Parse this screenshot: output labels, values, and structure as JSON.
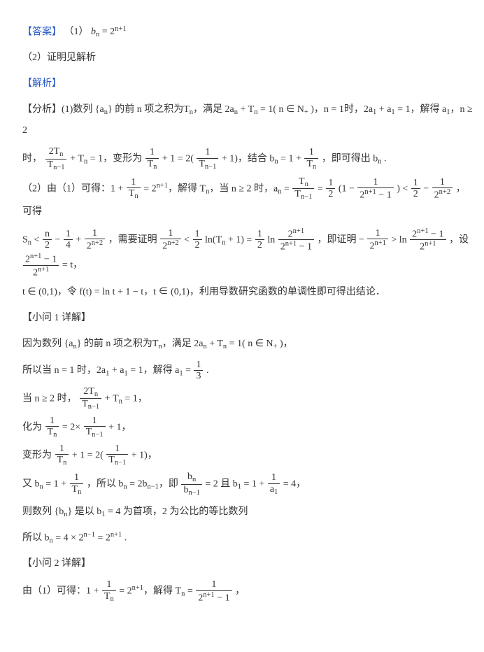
{
  "colors": {
    "blue": "#2356c5",
    "text": "#333333",
    "background": "#ffffff"
  },
  "typography": {
    "base_fontsize_pt": 11,
    "line_height": 2.2,
    "font_family": "SimSun"
  },
  "ans": {
    "label": "【答案】",
    "p1_pre": "（1）",
    "p1_lhs": "b",
    "p1_sub": "n",
    "p1_eq": " = 2",
    "p1_exp": "n+1",
    "p2": "（2）证明见解析"
  },
  "jiexi": {
    "label": "【解析】"
  },
  "fenxi": {
    "label": "【分析】",
    "l1a": "(1)数列 {a",
    "l1a_sub": "n",
    "l1b": "} 的前 n 项之积为T",
    "l1b_sub": "n",
    "l1c": "，满足 2a",
    "l1c_sub": "n",
    "l1d": " + T",
    "l1d_sub": "n",
    "l1e": " = 1( n ∈ N",
    "l1e_sub": "+",
    "l1f": " )，n = 1时，2a",
    "l1f_sub": "1",
    "l1g": " + a",
    "l1g_sub": "1",
    "l1h": " = 1，解得 a",
    "l1h_sub": "1",
    "l1i": "，n ≥ 2",
    "l2a": "时，",
    "l2_num": "2T",
    "l2_num_sub": "n",
    "l2_den": "T",
    "l2_den_sub": "n−1",
    "l2b": " + T",
    "l2b_sub": "n",
    "l2c": " = 1，变形为 ",
    "l2c_n1": "1",
    "l2c_d1": "T",
    "l2c_d1s": "n",
    "l2d": " + 1 = 2(",
    "l2d_n1": "1",
    "l2d_d1": "T",
    "l2d_d1s": "n−1",
    "l2e": " + 1)，结合 b",
    "l2e_sub": "n",
    "l2f": " = 1 + ",
    "l2f_n": "1",
    "l2f_d": "T",
    "l2f_ds": "n",
    "l2g": "，即可得出 b",
    "l2g_sub": "n",
    "l2h": " .",
    "l3a": "（2）由（1）可得：1 + ",
    "l3_n1": "1",
    "l3_d1": "T",
    "l3_d1s": "n",
    "l3b": " = 2",
    "l3b_exp": "n+1",
    "l3c": "，解得 T",
    "l3c_sub": "n",
    "l3d": "，当 n ≥ 2 时，a",
    "l3d_sub": "n",
    "l3e": " = ",
    "l3_nA": "T",
    "l3_nAs": "n",
    "l3_dA": "T",
    "l3_dAs": "n−1",
    "l3f": " = ",
    "l3_nB": "1",
    "l3_dB": "2",
    "l3g": "(1 − ",
    "l3_nC": "1",
    "l3_dC": "2",
    "l3_dCe": "n+1",
    "l3_dCm": " − 1",
    "l3h": ") < ",
    "l3_nD": "1",
    "l3_dD": "2",
    "l3i": " − ",
    "l3_nE": "1",
    "l3_dE": "2",
    "l3_dEe": "n+2",
    "l3j": "，可得",
    "l4a": "S",
    "l4a_sub": "n",
    "l4b": " < ",
    "l4_nA": "n",
    "l4_dA": "2",
    "l4c": " − ",
    "l4_nB": "1",
    "l4_dB": "4",
    "l4d": " + ",
    "l4_nC": "1",
    "l4_dC": "2",
    "l4_dCe": "n+2",
    "l4e": "，需要证明 ",
    "l4_nD": "1",
    "l4_dD": "2",
    "l4_dDe": "n+2",
    "l4f": " < ",
    "l4_nE": "1",
    "l4_dE": "2",
    "l4g": "ln(T",
    "l4g_sub": "n",
    "l4h": " + 1) = ",
    "l4_nF": "1",
    "l4_dF": "2",
    "l4i": " ln ",
    "l4_nG": "2",
    "l4_nGe": "n+1",
    "l4_dG": "2",
    "l4_dGe": "n+1",
    "l4_dGm": " − 1",
    "l4j": "，即证明 − ",
    "l4_nH": "1",
    "l4_dH": "2",
    "l4_dHe": "n+1",
    "l4k": " > ln ",
    "l4_nI": "2",
    "l4_nIe": "n+1",
    "l4_nIm": " − 1",
    "l4_dI": "2",
    "l4_dIe": "n+1",
    "l4l": "，设 ",
    "l4_nJ": "2",
    "l4_nJe": "n+1",
    "l4_nJm": " − 1",
    "l4_dJ": "2",
    "l4_dJe": "n+1",
    "l4m": " = t，",
    "l5": "t ∈ (0,1)，令 f(t) = ln t + 1 − t，t ∈ (0,1)，利用导数研究函数的单调性即可得出结论．"
  },
  "q1": {
    "label": "【小问 1 详解】",
    "p1a": "因为数列 {a",
    "p1as": "n",
    "p1b": "} 的前 n 项之积为T",
    "p1bs": "n",
    "p1c": "，满足 2a",
    "p1cs": "n",
    "p1d": " + T",
    "p1ds": "n",
    "p1e": " = 1( n ∈ N",
    "p1es": "+",
    "p1f": " )，",
    "p2a": "所以当 n = 1 时，2a",
    "p2as": "1",
    "p2b": " + a",
    "p2bs": "1",
    "p2c": " = 1，解得 a",
    "p2cs": "1",
    "p2d": " = ",
    "p2n": "1",
    "p2den": "3",
    "p2e": " .",
    "p3a": "当 n ≥ 2 时，",
    "p3n": "2T",
    "p3ns": "n",
    "p3d": "T",
    "p3ds": "n−1",
    "p3b": " + T",
    "p3bs": "n",
    "p3c": " = 1，",
    "p4a": "化为 ",
    "p4nA": "1",
    "p4dA": "T",
    "p4dAs": "n",
    "p4b": " = 2× ",
    "p4nB": "1",
    "p4dB": "T",
    "p4dBs": "n−1",
    "p4c": " + 1，",
    "p5a": "变形为 ",
    "p5nA": "1",
    "p5dA": "T",
    "p5dAs": "n",
    "p5b": " + 1 = 2(",
    "p5nB": "1",
    "p5dB": "T",
    "p5dBs": "n−1",
    "p5c": " + 1)，",
    "p6a": "又 b",
    "p6as": "n",
    "p6b": " = 1 + ",
    "p6nA": "1",
    "p6dA": "T",
    "p6dAs": "n",
    "p6c": "，所以 b",
    "p6cs": "n",
    "p6d": " = 2b",
    "p6ds": "n−1",
    "p6e": "，即 ",
    "p6nB": "b",
    "p6nBs": "n",
    "p6dB": "b",
    "p6dBs": "n−1",
    "p6f": " = 2 且 b",
    "p6fs": "1",
    "p6g": " = 1 + ",
    "p6nC": "1",
    "p6dC": "a",
    "p6dCs": "1",
    "p6h": " = 4，",
    "p7a": "则数列 {b",
    "p7as": "n",
    "p7b": "} 是以 b",
    "p7bs": "1",
    "p7c": " = 4 为首项，2 为公比的等比数列",
    "p8a": "所以 b",
    "p8as": "n",
    "p8b": " = 4 × 2",
    "p8be": "n−1",
    "p8c": " = 2",
    "p8ce": "n+1",
    "p8d": " ."
  },
  "q2": {
    "label": "【小问 2 详解】",
    "p1a": "由（1）可得：1 + ",
    "p1nA": "1",
    "p1dA": "T",
    "p1dAs": "n",
    "p1b": " = 2",
    "p1be": "n+1",
    "p1c": "，解得 T",
    "p1cs": "n",
    "p1d": " = ",
    "p1nB": "1",
    "p1dB": "2",
    "p1dBe": "n+1",
    "p1dBm": " − 1",
    "p1e": "，"
  }
}
